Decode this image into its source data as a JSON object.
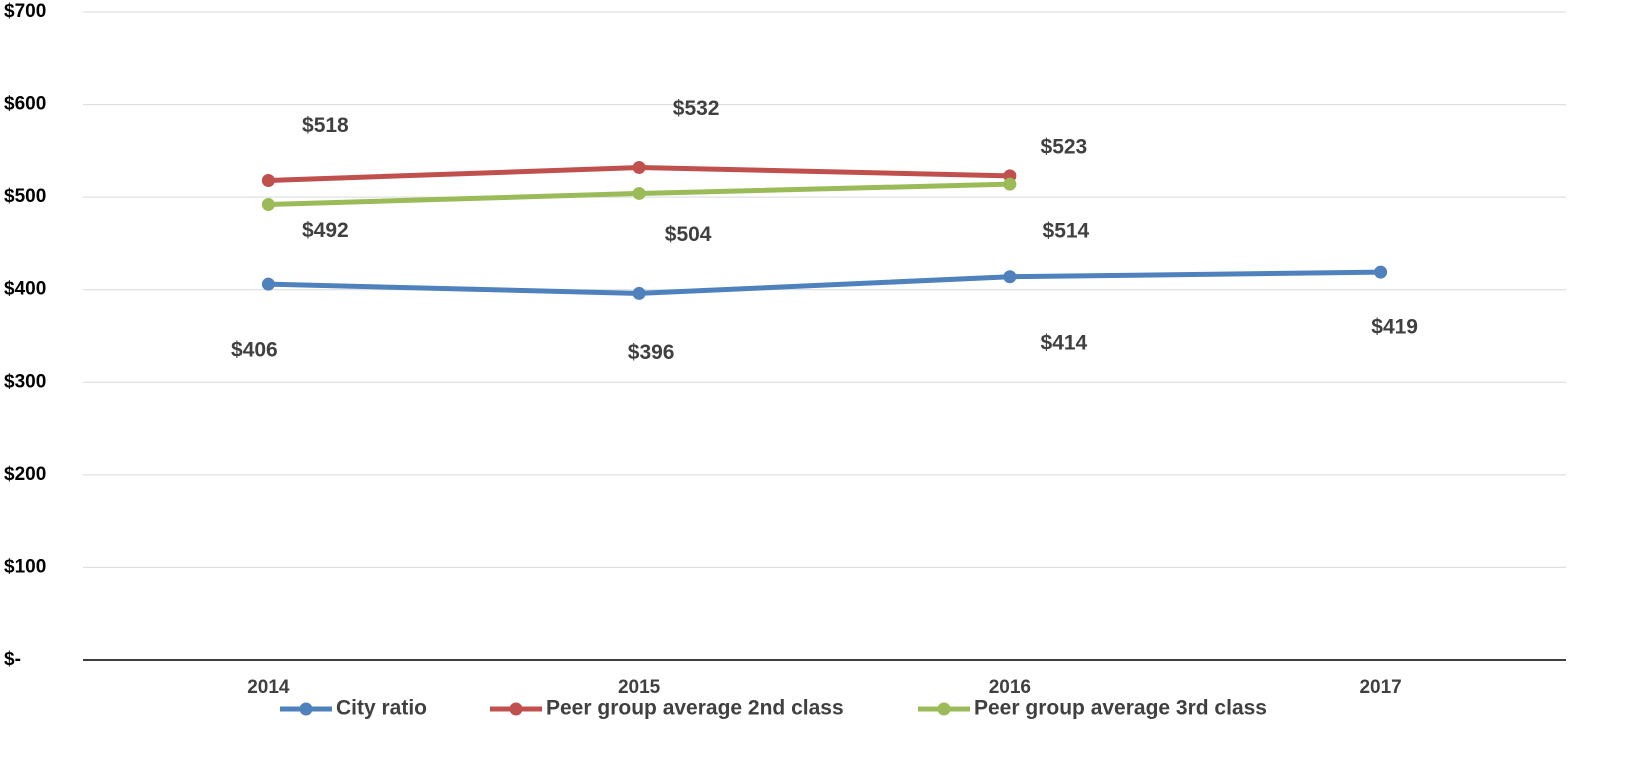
{
  "chart_data": {
    "type": "line",
    "categories": [
      "2014",
      "2015",
      "2016",
      "2017"
    ],
    "series": [
      {
        "name": "City ratio",
        "color": "#4f81bd",
        "values": [
          406,
          396,
          414,
          419
        ],
        "value_labels": [
          "$406",
          "$396",
          "$414",
          "$419"
        ]
      },
      {
        "name": "Peer group average 2nd class",
        "color": "#c0504d",
        "values": [
          518,
          532,
          523,
          null
        ],
        "value_labels": [
          "$518",
          "$532",
          "$523",
          null
        ]
      },
      {
        "name": "Peer group average 3rd class",
        "color": "#9bbb59",
        "values": [
          492,
          504,
          514,
          null
        ],
        "value_labels": [
          "$492",
          "$504",
          "$514",
          null
        ]
      }
    ],
    "ylim": [
      0,
      700
    ],
    "yticks": [
      {
        "value": 0,
        "label": "$-"
      },
      {
        "value": 100,
        "label": "$100"
      },
      {
        "value": 200,
        "label": "$200"
      },
      {
        "value": 300,
        "label": "$300"
      },
      {
        "value": 400,
        "label": "$400"
      },
      {
        "value": 500,
        "label": "$500"
      },
      {
        "value": 600,
        "label": "$600"
      },
      {
        "value": 700,
        "label": "$700"
      }
    ],
    "grid": true,
    "legend": "bottom"
  }
}
